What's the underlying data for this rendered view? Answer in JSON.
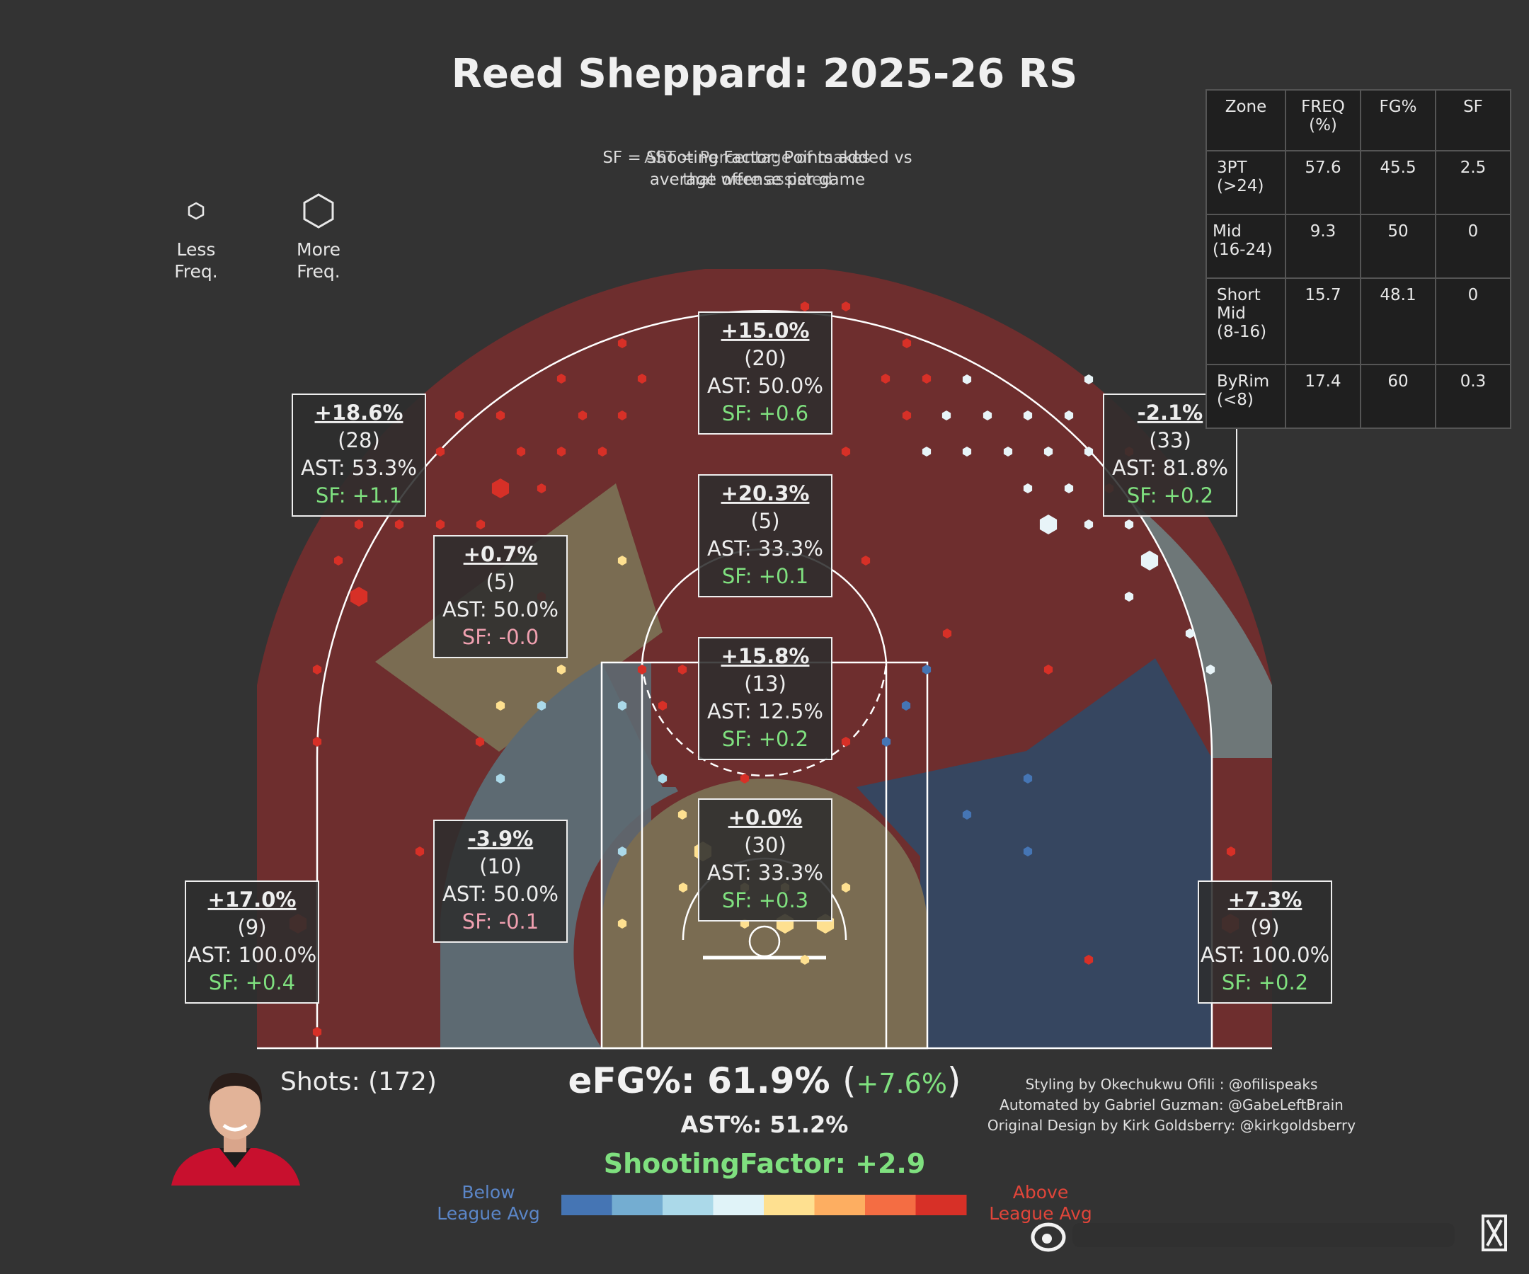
{
  "title": "Reed Sheppard: 2025-26 RS",
  "notes": {
    "line_a1": "SF = Shooting Factor: Points added vs",
    "line_a2": "average offense per game",
    "line_b1": "AST = Percentage of makes",
    "line_b2": "that were assisted"
  },
  "size_legend": {
    "less": "Less\nFreq.",
    "more": "More\nFreq."
  },
  "zone_table": {
    "headers": [
      "Zone",
      "FREQ\n(%)",
      "FG%",
      "SF"
    ],
    "rows": [
      {
        "zone": "3PT\n(>24)",
        "freq": "57.6",
        "fg": "45.5",
        "sf": "2.5"
      },
      {
        "zone": "Mid\n(16-24)",
        "freq": "9.3",
        "fg": "50",
        "sf": "0"
      },
      {
        "zone": "Short\nMid\n(8-16)",
        "freq": "15.7",
        "fg": "48.1",
        "sf": "0"
      },
      {
        "zone": "ByRim\n(<8)",
        "freq": "17.4",
        "fg": "60",
        "sf": "0.3"
      }
    ]
  },
  "chart_data": {
    "type": "hexbin-shot-chart",
    "zones": [
      {
        "id": "corner3-left",
        "diff": "+17.0%",
        "attempts": "(9)",
        "ast": "AST: 100.0%",
        "sf": "SF: +0.4",
        "sf_sign": "pos",
        "fill": "red"
      },
      {
        "id": "wing3-left",
        "diff": "+18.6%",
        "attempts": "(28)",
        "ast": "AST: 53.3%",
        "sf": "SF: +1.1",
        "sf_sign": "pos",
        "fill": "red"
      },
      {
        "id": "top3",
        "diff": "+15.0%",
        "attempts": "(20)",
        "ast": "AST: 50.0%",
        "sf": "SF: +0.6",
        "sf_sign": "pos",
        "fill": "red"
      },
      {
        "id": "wing3-right",
        "diff": "-2.1%",
        "attempts": "(33)",
        "ast": "AST: 81.8%",
        "sf": "SF: +0.2",
        "sf_sign": "pos",
        "fill": "grey"
      },
      {
        "id": "corner3-right",
        "diff": "+7.3%",
        "attempts": "(9)",
        "ast": "AST: 100.0%",
        "sf": "SF: +0.2",
        "sf_sign": "pos",
        "fill": "red"
      },
      {
        "id": "mid-left-wing",
        "diff": "+0.7%",
        "attempts": "(5)",
        "ast": "AST: 50.0%",
        "sf": "SF: -0.0",
        "sf_sign": "neg",
        "fill": "tan"
      },
      {
        "id": "mid-top",
        "diff": "+20.3%",
        "attempts": "(5)",
        "ast": "AST: 33.3%",
        "sf": "SF: +0.1",
        "sf_sign": "pos",
        "fill": "red"
      },
      {
        "id": "short-mid-center",
        "diff": "+15.8%",
        "attempts": "(13)",
        "ast": "AST: 12.5%",
        "sf": "SF: +0.2",
        "sf_sign": "pos",
        "fill": "red"
      },
      {
        "id": "short-mid-left",
        "diff": "-3.9%",
        "attempts": "(10)",
        "ast": "AST: 50.0%",
        "sf": "SF: -0.1",
        "sf_sign": "neg",
        "fill": "slate"
      },
      {
        "id": "rim",
        "diff": "+0.0%",
        "attempts": "(30)",
        "ast": "AST: 33.3%",
        "sf": "SF: +0.3",
        "sf_sign": "pos",
        "fill": "tan"
      }
    ],
    "colorbar": {
      "colors": [
        "#4575b4",
        "#74add1",
        "#abd9e9",
        "#e0f3f8",
        "#fee090",
        "#fdae61",
        "#f46d43",
        "#d73027"
      ],
      "low_label": "Below\nLeague Avg",
      "high_label": "Above\nLeague Avg"
    }
  },
  "summary": {
    "shots": "Shots: (172)",
    "efg": "eFG%: 61.9%",
    "efg_delta": "+7.6%",
    "ast_pct": "AST%: 51.2%",
    "shooting_factor": "ShootingFactor: +2.9"
  },
  "credits": [
    "Styling by Okechukwu Ofili : @ofilispeaks",
    "Automated by Gabriel Guzman: @GabeLeftBrain",
    "Original Design by Kirk Goldsberry: @kirkgoldsberry"
  ],
  "colors": {
    "background": "#333333",
    "zone_red": "#6e2e2e",
    "zone_grey": "#6e7778",
    "zone_tan": "#7a6c52",
    "zone_slate": "#5d6a72",
    "zone_navy": "#364660",
    "positive": "#7fe07f",
    "negative": "#f0a0b0"
  }
}
